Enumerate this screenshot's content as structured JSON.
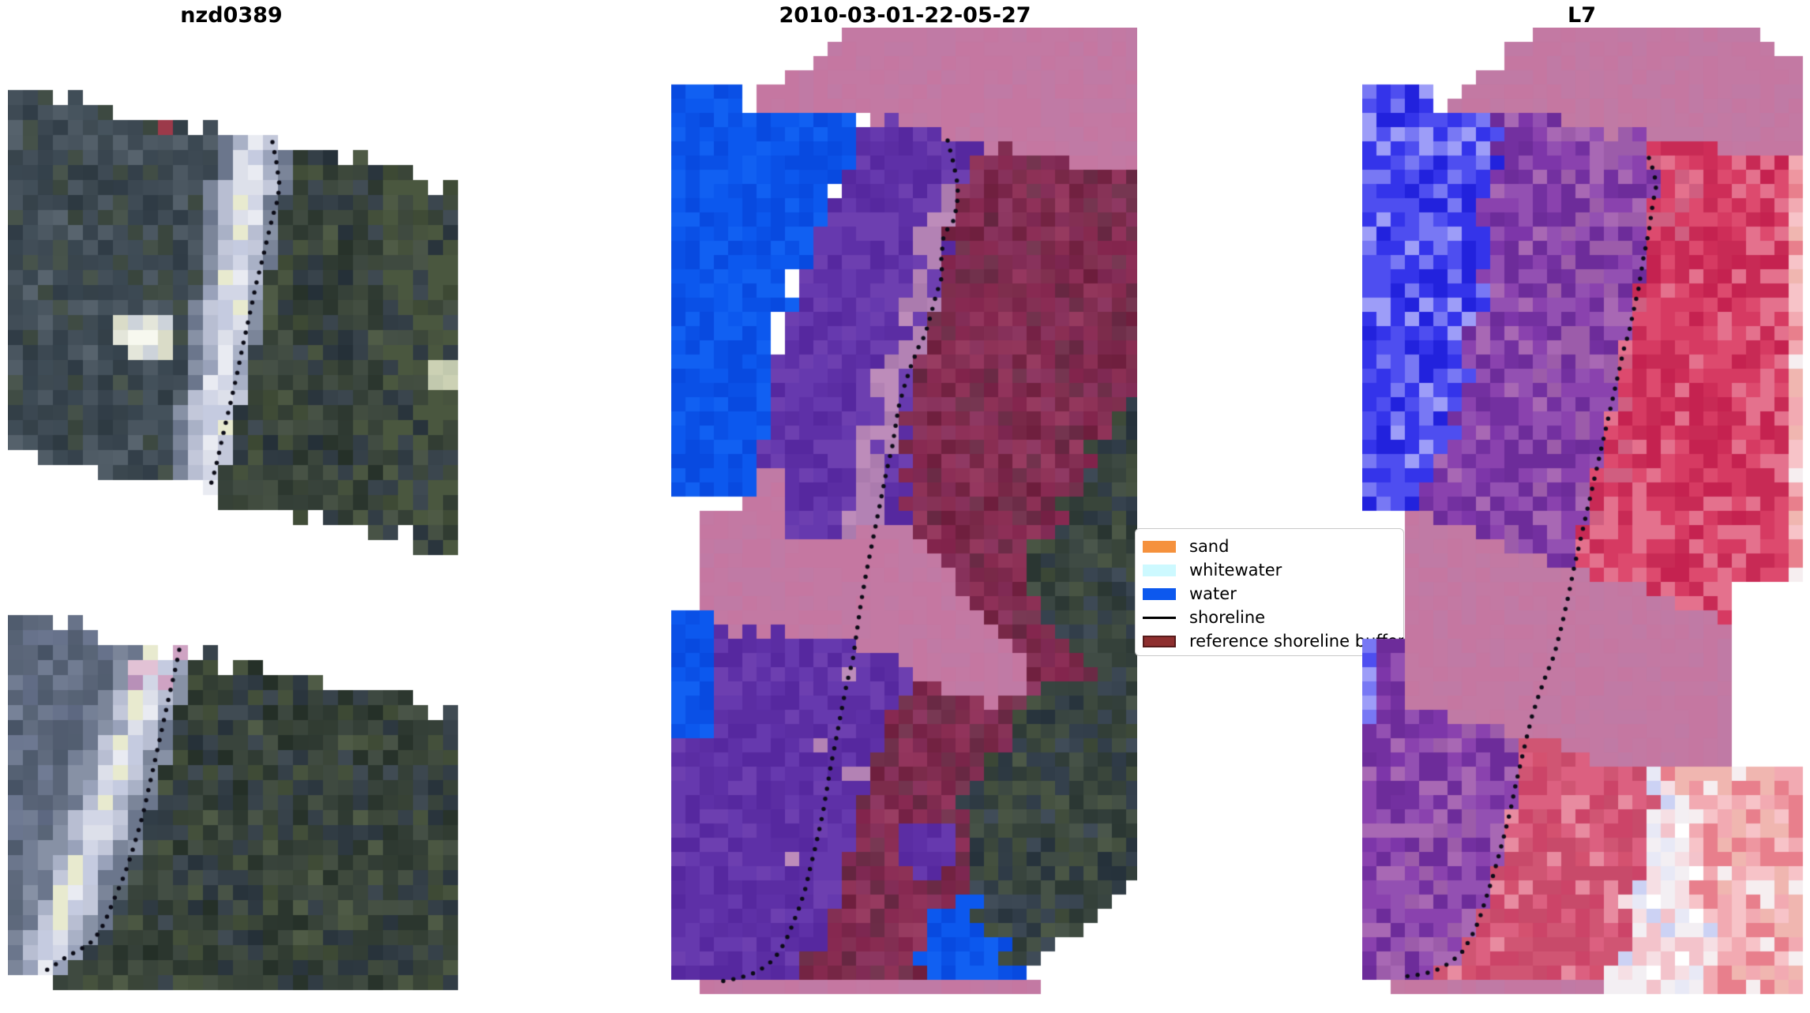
{
  "figure": {
    "background": "#ffffff"
  },
  "panels": [
    {
      "id": "nzd0389",
      "title": "nzd0389"
    },
    {
      "id": "classified",
      "title": "2010-03-01-22-05-27"
    },
    {
      "id": "l7",
      "title": "L7"
    }
  ],
  "legend": {
    "items": [
      {
        "label": "sand",
        "swatch": "patch",
        "color": "#f5913d",
        "border": "#f5913d"
      },
      {
        "label": "whitewater",
        "swatch": "patch",
        "color": "#cdf9ff",
        "border": "#cdf9ff"
      },
      {
        "label": "water",
        "swatch": "patch",
        "color": "#0c58ee",
        "border": "#0c58ee"
      },
      {
        "label": "shoreline",
        "swatch": "line",
        "color": "#000000"
      },
      {
        "label": "reference shoreline buffer",
        "swatch": "patch",
        "color": "#8e2f2f",
        "border": "#571b1b"
      }
    ]
  },
  "palette": {
    "cloud_mask_pink": "#c379a3",
    "water_blue": "#0c58ee",
    "buffer_water_purple": "#5e30a7",
    "buffer_land_maroon": "#842a4f",
    "sand_mauve": "#b382b4",
    "vegetation_dark": "#3a463f",
    "l7_water_blue": "#3434ea",
    "l7_buffer_purple": "#7d36a9",
    "l7_land_red": "#ce2d58",
    "l7_bright_rose": "#ee96a0",
    "shoreline_black": "#0b0b16"
  }
}
